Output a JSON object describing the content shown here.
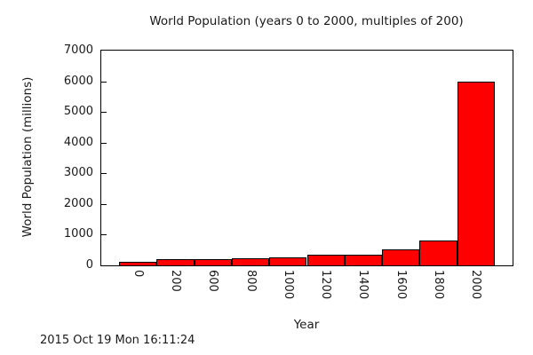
{
  "timestamp": "2015 Oct 19 Mon 16:11:24",
  "chart_data": {
    "type": "bar",
    "title": "World Population (years 0 to 2000, multiples of 200)",
    "xlabel": "Year",
    "ylabel": "World Population (millions)",
    "categories": [
      "0",
      "200",
      "600",
      "800",
      "1000",
      "1200",
      "1400",
      "1600",
      "1800",
      "2000"
    ],
    "values": [
      130,
      200,
      200,
      220,
      265,
      360,
      340,
      530,
      800,
      6000
    ],
    "ylim": [
      0,
      7000
    ],
    "yticks": [
      0,
      1000,
      2000,
      3000,
      4000,
      5000,
      6000,
      7000
    ],
    "grid": false,
    "legend": "none",
    "bar_color": "#ff0000",
    "bar_border_color": "#000000",
    "axis_color": "#000000",
    "background_color": "#ffffff"
  }
}
